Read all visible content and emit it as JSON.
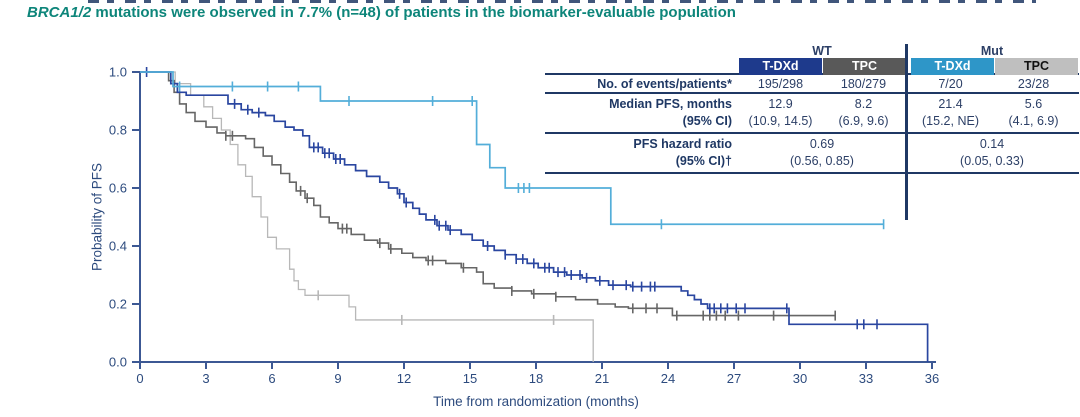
{
  "page": {
    "title_italic": "BRCA1/2",
    "title_rest": " mutations were observed in 7.7% (n=48) of patients in the biomarker-evaluable population",
    "title_color": "#0d857a"
  },
  "table": {
    "group_headers": [
      "WT",
      "Mut"
    ],
    "col_headers": [
      "T-DXd",
      "TPC",
      "T-DXd",
      "TPC"
    ],
    "colors": {
      "tdxd_wt": "#1e3a8c",
      "tpc_wt": "#595959",
      "tdxd_mut": "#2e96c8",
      "tpc_mut": "#bfbfbf",
      "rule": "#1f3864"
    },
    "rows": {
      "events": {
        "label": "No. of events/patients*",
        "values": [
          "195/298",
          "180/279",
          "7/20",
          "23/28"
        ]
      },
      "median": {
        "label_line1": "Median PFS, months",
        "label_line2": "(95% CI)",
        "values": [
          [
            "12.9",
            "(10.9, 14.5)"
          ],
          [
            "8.2",
            "(6.9, 9.6)"
          ],
          [
            "21.4",
            "(15.2, NE)"
          ],
          [
            "5.6",
            "(4.1, 6.9)"
          ]
        ]
      },
      "hr": {
        "label_line1": "PFS hazard ratio",
        "label_line2": "(95% CI)†",
        "values": [
          [
            "0.69",
            "(0.56, 0.85)"
          ],
          [
            "0.14",
            "(0.05, 0.33)"
          ]
        ]
      }
    }
  },
  "chart_data": {
    "type": "line",
    "subtype": "kaplan-meier-step",
    "title": "",
    "xlabel": "Time from randomization (months)",
    "ylabel": "Probability of PFS",
    "xlim": [
      0,
      36
    ],
    "ylim": [
      0.0,
      1.0
    ],
    "x_ticks": [
      0,
      3,
      6,
      9,
      12,
      15,
      18,
      21,
      24,
      27,
      30,
      33,
      36
    ],
    "y_ticks": [
      0.0,
      0.2,
      0.4,
      0.6,
      0.8,
      1.0
    ],
    "grid": false,
    "legend": "none (series identified by table header colors)",
    "axis_color": "#3c5894",
    "series": [
      {
        "name": "TPC (Mut)",
        "color": "#b8b8b8",
        "width": 1.3,
        "points": [
          [
            0,
            1.0
          ],
          [
            1.6,
            0.96
          ],
          [
            2.3,
            0.92
          ],
          [
            2.9,
            0.88
          ],
          [
            3.3,
            0.84
          ],
          [
            3.7,
            0.8
          ],
          [
            4.1,
            0.75
          ],
          [
            4.45,
            0.68
          ],
          [
            4.8,
            0.64
          ],
          [
            5.1,
            0.57
          ],
          [
            5.5,
            0.5
          ],
          [
            5.8,
            0.43
          ],
          [
            6.2,
            0.39
          ],
          [
            6.8,
            0.32
          ],
          [
            7.0,
            0.28
          ],
          [
            7.2,
            0.25
          ],
          [
            7.5,
            0.23
          ],
          [
            9.5,
            0.19
          ],
          [
            9.8,
            0.145
          ],
          [
            20.6,
            0.0
          ]
        ],
        "censors": [
          8.1,
          11.9,
          18.8
        ]
      },
      {
        "name": "TPC (WT)",
        "color": "#666666",
        "width": 1.6,
        "points": [
          [
            0,
            1.0
          ],
          [
            1.3,
            0.97
          ],
          [
            1.55,
            0.93
          ],
          [
            1.8,
            0.89
          ],
          [
            2.1,
            0.86
          ],
          [
            2.5,
            0.83
          ],
          [
            3.0,
            0.81
          ],
          [
            3.5,
            0.79
          ],
          [
            3.9,
            0.78
          ],
          [
            4.8,
            0.77
          ],
          [
            5.2,
            0.74
          ],
          [
            5.6,
            0.71
          ],
          [
            6.0,
            0.68
          ],
          [
            6.4,
            0.65
          ],
          [
            6.8,
            0.62
          ],
          [
            7.1,
            0.59
          ],
          [
            7.5,
            0.565
          ],
          [
            7.9,
            0.54
          ],
          [
            8.2,
            0.5
          ],
          [
            8.6,
            0.48
          ],
          [
            9.0,
            0.46
          ],
          [
            9.6,
            0.44
          ],
          [
            10.2,
            0.42
          ],
          [
            10.8,
            0.41
          ],
          [
            11.3,
            0.39
          ],
          [
            11.9,
            0.375
          ],
          [
            12.4,
            0.36
          ],
          [
            13.0,
            0.35
          ],
          [
            13.9,
            0.34
          ],
          [
            14.6,
            0.325
          ],
          [
            15.3,
            0.31
          ],
          [
            15.6,
            0.27
          ],
          [
            16.1,
            0.255
          ],
          [
            16.9,
            0.245
          ],
          [
            17.8,
            0.235
          ],
          [
            18.9,
            0.225
          ],
          [
            19.8,
            0.215
          ],
          [
            20.8,
            0.2
          ],
          [
            21.6,
            0.19
          ],
          [
            22.2,
            0.185
          ],
          [
            24.2,
            0.16
          ],
          [
            31.6,
            0.16
          ]
        ],
        "censors": [
          3.9,
          4.2,
          7.3,
          7.6,
          9.2,
          9.4,
          10.9,
          11.4,
          13.1,
          13.3,
          14.7,
          16.9,
          17.9,
          18.9,
          22.4,
          23.0,
          23.5,
          24.4,
          25.6,
          25.9,
          26.2,
          26.6,
          27.2,
          28.8,
          31.6
        ]
      },
      {
        "name": "T-DXd (WT)",
        "color": "#2a46a0",
        "width": 1.7,
        "points": [
          [
            0,
            1.0
          ],
          [
            1.4,
            0.96
          ],
          [
            1.7,
            0.93
          ],
          [
            2.1,
            0.92
          ],
          [
            4.0,
            0.89
          ],
          [
            4.6,
            0.87
          ],
          [
            5.1,
            0.86
          ],
          [
            5.7,
            0.85
          ],
          [
            6.1,
            0.83
          ],
          [
            6.6,
            0.81
          ],
          [
            7.0,
            0.8
          ],
          [
            7.4,
            0.78
          ],
          [
            7.7,
            0.74
          ],
          [
            8.3,
            0.72
          ],
          [
            8.8,
            0.7
          ],
          [
            9.3,
            0.68
          ],
          [
            9.8,
            0.66
          ],
          [
            10.3,
            0.64
          ],
          [
            10.9,
            0.62
          ],
          [
            11.3,
            0.6
          ],
          [
            11.7,
            0.58
          ],
          [
            12.0,
            0.55
          ],
          [
            12.4,
            0.53
          ],
          [
            12.7,
            0.51
          ],
          [
            13.0,
            0.49
          ],
          [
            13.5,
            0.47
          ],
          [
            14.0,
            0.455
          ],
          [
            14.6,
            0.44
          ],
          [
            15.1,
            0.42
          ],
          [
            15.6,
            0.4
          ],
          [
            16.1,
            0.385
          ],
          [
            16.6,
            0.37
          ],
          [
            17.1,
            0.355
          ],
          [
            17.6,
            0.34
          ],
          [
            18.1,
            0.325
          ],
          [
            18.8,
            0.31
          ],
          [
            19.4,
            0.3
          ],
          [
            20.1,
            0.29
          ],
          [
            20.7,
            0.28
          ],
          [
            21.3,
            0.265
          ],
          [
            22.3,
            0.26
          ],
          [
            24.6,
            0.245
          ],
          [
            24.9,
            0.23
          ],
          [
            25.2,
            0.215
          ],
          [
            25.5,
            0.2
          ],
          [
            25.8,
            0.185
          ],
          [
            29.5,
            0.13
          ],
          [
            35.8,
            0.0
          ]
        ],
        "censors": [
          0.3,
          4.3,
          4.9,
          5.4,
          7.9,
          8.1,
          8.4,
          8.6,
          8.9,
          9.1,
          11.8,
          12.1,
          13.4,
          13.6,
          13.9,
          14.1,
          15.8,
          16.6,
          17.1,
          17.4,
          17.9,
          18.4,
          18.6,
          19.0,
          19.3,
          19.6,
          20.0,
          20.3,
          20.9,
          21.5,
          22.1,
          22.4,
          22.8,
          23.2,
          23.4,
          25.9,
          26.1,
          26.4,
          26.7,
          27.1,
          27.5,
          29.4,
          32.6,
          32.9,
          33.5
        ]
      },
      {
        "name": "T-DXd (Mut)",
        "color": "#53aed9",
        "width": 1.7,
        "points": [
          [
            0,
            1.0
          ],
          [
            1.5,
            0.95
          ],
          [
            8.2,
            0.9
          ],
          [
            15.3,
            0.75
          ],
          [
            15.9,
            0.67
          ],
          [
            16.6,
            0.6
          ],
          [
            21.4,
            0.475
          ],
          [
            33.8,
            0.475
          ]
        ],
        "censors": [
          1.8,
          4.2,
          5.8,
          7.2,
          9.5,
          13.3,
          15.1,
          17.2,
          17.45,
          17.7,
          23.7,
          33.8
        ]
      }
    ]
  }
}
